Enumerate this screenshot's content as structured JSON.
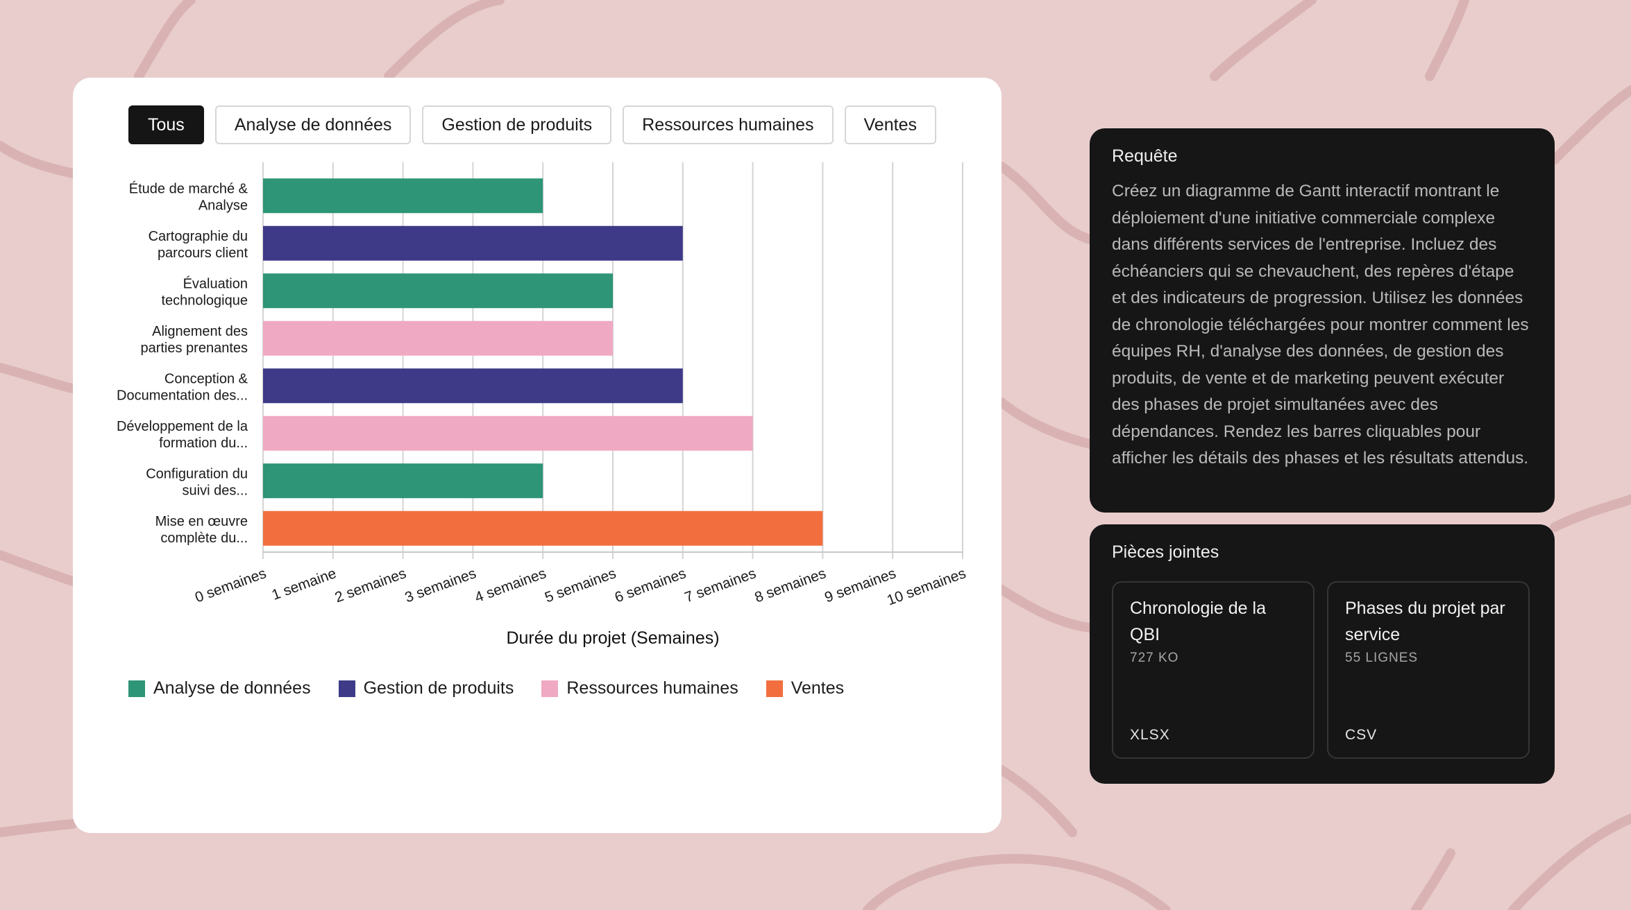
{
  "filters": [
    "Tous",
    "Analyse de données",
    "Gestion de produits",
    "Ressources humaines",
    "Ventes"
  ],
  "active_filter": "Tous",
  "colors": {
    "Analyse de données": "#2e9577",
    "Gestion de produits": "#3e3a87",
    "Ressources humaines": "#f0a9c3",
    "Ventes": "#f26e3f"
  },
  "chart_data": {
    "type": "bar",
    "orientation": "horizontal",
    "categories": [
      [
        "Étude de marché &",
        "Analyse"
      ],
      [
        "Cartographie du",
        "parcours client"
      ],
      [
        "Évaluation",
        "technologique"
      ],
      [
        "Alignement des",
        "parties prenantes"
      ],
      [
        "Conception &",
        "Documentation des..."
      ],
      [
        "Développement de la",
        "formation du..."
      ],
      [
        "Configuration du",
        "suivi des..."
      ],
      [
        "Mise en œuvre",
        "complète du..."
      ]
    ],
    "values": [
      4,
      6,
      5,
      5,
      6,
      7,
      4,
      8
    ],
    "departments": [
      "Analyse de données",
      "Gestion de produits",
      "Analyse de données",
      "Ressources humaines",
      "Gestion de produits",
      "Ressources humaines",
      "Analyse de données",
      "Ventes"
    ],
    "xlabel": "Durée du projet (Semaines)",
    "xticks": [
      "0 semaines",
      "1 semaine",
      "2 semaines",
      "3 semaines",
      "4 semaines",
      "5 semaines",
      "6 semaines",
      "7 semaines",
      "8 semaines",
      "9 semaines",
      "10 semaines"
    ],
    "xlim": [
      0,
      10
    ],
    "grid": true,
    "legend": [
      "Analyse de données",
      "Gestion de produits",
      "Ressources humaines",
      "Ventes"
    ],
    "legend_position": "bottom-left"
  },
  "query": {
    "title": "Requête",
    "text": "Créez un diagramme de Gantt interactif montrant le déploiement d'une initiative commerciale complexe dans différents services de l'entreprise. Incluez des échéanciers qui se chevauchent, des repères d'étape et des indicateurs de progression. Utilisez les données de chronologie téléchargées pour montrer comment les équipes RH, d'analyse des données, de gestion des produits, de vente et de marketing peuvent exécuter des phases de projet simultanées avec des dépendances. Rendez les barres cliquables pour afficher les détails des phases et les résultats attendus."
  },
  "attachments": {
    "title": "Pièces jointes",
    "items": [
      {
        "name": "Chronologie de la QBI",
        "size": "727 KO",
        "type": "XLSX"
      },
      {
        "name": "Phases du projet par service",
        "size": "55 LIGNES",
        "type": "CSV"
      }
    ]
  }
}
